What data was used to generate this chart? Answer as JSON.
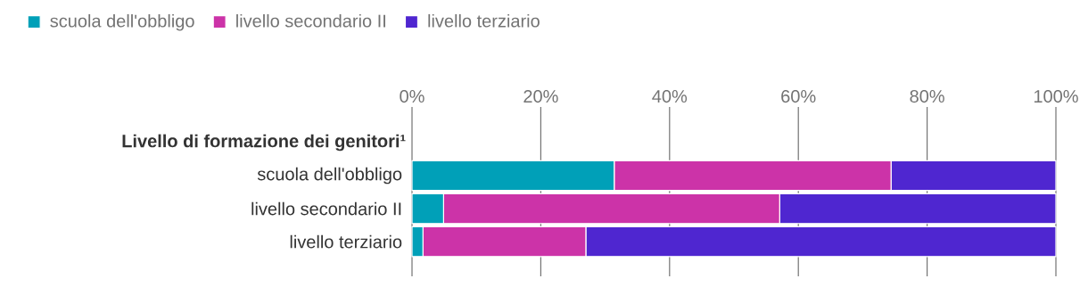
{
  "chart_data": {
    "type": "bar",
    "orientation": "horizontal",
    "stacked": true,
    "ylabel": "Livello di formazione dei genitori¹",
    "categories": [
      "scuola dell'obbligo",
      "livello secondario II",
      "livello terziario"
    ],
    "series": [
      {
        "name": "scuola dell'obbligo",
        "color": "#00a0b8",
        "values": [
          31.4,
          4.9,
          1.7
        ]
      },
      {
        "name": "livello secondario II",
        "color": "#cc33a8",
        "values": [
          43.0,
          52.2,
          25.3
        ]
      },
      {
        "name": "livello terziario",
        "color": "#4f26d0",
        "values": [
          25.6,
          42.9,
          73.0
        ]
      }
    ],
    "xlim": [
      0,
      100
    ],
    "xticks": [
      {
        "value": 0,
        "label": "0%"
      },
      {
        "value": 20,
        "label": "20%"
      },
      {
        "value": 40,
        "label": "40%"
      },
      {
        "value": 60,
        "label": "60%"
      },
      {
        "value": 80,
        "label": "80%"
      },
      {
        "value": 100,
        "label": "100%"
      }
    ],
    "grid": "x",
    "legend": "top left"
  }
}
